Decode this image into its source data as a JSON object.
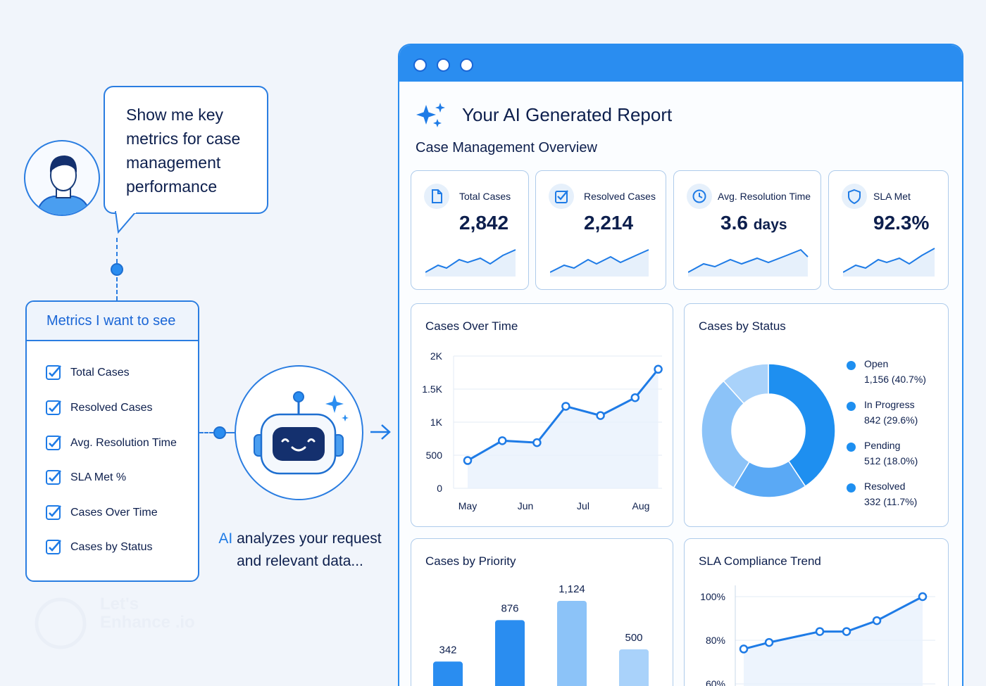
{
  "prompt": {
    "speech_text": "Show me key metrics for case management performance"
  },
  "metrics_panel": {
    "title": "Metrics I want to see",
    "items": [
      {
        "label": "Total Cases",
        "checked": true
      },
      {
        "label": "Resolved Cases",
        "checked": true
      },
      {
        "label": "Avg. Resolution Time",
        "checked": true
      },
      {
        "label": "SLA Met %",
        "checked": true
      },
      {
        "label": "Cases Over Time",
        "checked": true
      },
      {
        "label": "Cases by Status",
        "checked": true
      }
    ]
  },
  "ai_caption": {
    "ai": "AI",
    "rest": " analyzes your request and relevant data..."
  },
  "watermark": {
    "text": "Let's Enhance .io"
  },
  "report": {
    "title": "Your AI Generated Report",
    "subtitle": "Case Management Overview",
    "kpis": [
      {
        "label": "Total Cases",
        "value": "2,842",
        "unit": "",
        "icon": "document-icon"
      },
      {
        "label": "Resolved Cases",
        "value": "2,214",
        "unit": "",
        "icon": "checkbox-icon"
      },
      {
        "label": "Avg. Resolution Time",
        "value": "3.6",
        "unit": "days",
        "icon": "clock-icon"
      },
      {
        "label": "SLA Met",
        "value": "92.3%",
        "unit": "",
        "icon": "shield-icon"
      }
    ],
    "panels": {
      "cases_over_time": "Cases Over Time",
      "cases_by_status": "Cases by Status",
      "cases_by_priority": "Cases by Priority",
      "sla_trend": "SLA Compliance Trend"
    },
    "status_legend": [
      {
        "name": "Open",
        "value": "1,156 (40.7%)"
      },
      {
        "name": "In Progress",
        "value": "842 (29.6%)"
      },
      {
        "name": "Pending",
        "value": "512 (18.0%)"
      },
      {
        "name": "Resolved",
        "value": "332 (11.7%)"
      }
    ]
  },
  "colors": {
    "accent": "#2a8df0",
    "dark_text": "#0d1f4d",
    "donut_dark": "#1e8ff0",
    "donut_mid": "#5aa9f5",
    "donut_light": "#8cc3f8",
    "donut_lightest": "#a9d2fa"
  },
  "chart_data": [
    {
      "type": "line",
      "title": "Cases Over Time",
      "x_ticks": [
        "May",
        "Jun",
        "Jul",
        "Aug"
      ],
      "y_ticks": [
        "0",
        "500",
        "1K",
        "1.5K",
        "2K"
      ],
      "ylim": [
        0,
        2000
      ],
      "x": [
        0,
        0.6,
        1.2,
        1.7,
        2.3,
        2.9,
        3.3
      ],
      "values": [
        420,
        720,
        690,
        1240,
        1100,
        1370,
        1800
      ],
      "area": true
    },
    {
      "type": "pie",
      "title": "Cases by Status",
      "donut": true,
      "labels": [
        "Open",
        "In Progress",
        "Pending",
        "Resolved"
      ],
      "values": [
        1156,
        842,
        512,
        332
      ],
      "percent": [
        40.7,
        29.6,
        18.0,
        11.7
      ]
    },
    {
      "type": "bar",
      "title": "Cases by Priority",
      "categories": [
        "",
        "",
        "",
        ""
      ],
      "values": [
        342,
        876,
        1124,
        500
      ],
      "labels": [
        "342",
        "876",
        "1,124",
        "500"
      ]
    },
    {
      "type": "line",
      "title": "SLA Compliance Trend",
      "y_ticks": [
        "60%",
        "80%",
        "100%"
      ],
      "ylim": [
        60,
        100
      ],
      "values": [
        76,
        79,
        84,
        84,
        89,
        100
      ],
      "area": true
    }
  ]
}
